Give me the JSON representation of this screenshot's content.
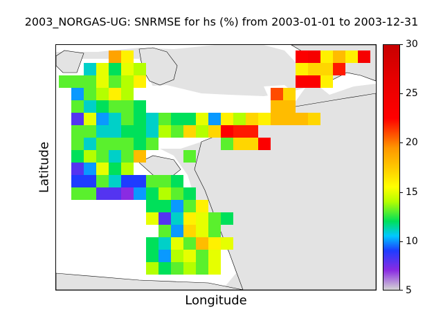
{
  "title": "2003_NORGAS-UG: SNRMSE for hs (%) from 2003-01-01 to 2003-12-31",
  "xlabel": "Longitude",
  "ylabel": "Latitude",
  "colorbar": {
    "min": 5,
    "max": 30,
    "ticks": [
      "5",
      "10",
      "15",
      "20",
      "25",
      "30"
    ]
  },
  "colors": {
    "land": "#e3e3e3",
    "sea": "#ffffff",
    "coast": "#000000"
  },
  "grid": {
    "rows": [
      {
        "start": 4,
        "values": [
          19,
          16
        ]
      },
      {
        "start": 2,
        "values": [
          11,
          15,
          12,
          15,
          14
        ]
      },
      {
        "start": 0,
        "values": [
          13,
          13,
          13,
          15,
          13,
          14,
          16
        ]
      },
      {
        "start": 1,
        "values": [
          10,
          13,
          14,
          16,
          14
        ]
      },
      {
        "start": 1,
        "values": [
          13,
          11,
          12,
          13,
          13,
          12
        ]
      },
      {
        "start": 1,
        "values": [
          8,
          15,
          10,
          11,
          13,
          12,
          11,
          13,
          12,
          12,
          13,
          12,
          15,
          13,
          11,
          18,
          18,
          19,
          14
        ]
      },
      {
        "start": 1,
        "values": [
          13,
          13,
          11,
          11,
          12,
          12,
          11,
          14,
          13,
          17,
          14,
          23,
          22
        ]
      },
      {
        "start": 1,
        "values": [
          13,
          11,
          13,
          13,
          13,
          12,
          13
        ]
      },
      {
        "start": 1,
        "values": [
          12,
          14,
          13,
          11,
          13,
          18
        ]
      },
      {
        "start": 1,
        "values": [
          8,
          10,
          15,
          12,
          14
        ]
      },
      {
        "start": 1,
        "values": [
          9,
          9,
          13,
          11,
          9,
          9,
          13,
          13,
          12
        ]
      },
      {
        "start": 1,
        "values": [
          13,
          13,
          8,
          8,
          7,
          10,
          12,
          14,
          16
        ]
      }
    ],
    "segments": [
      {
        "row": 5,
        "start": 11,
        "values": [
          15,
          10,
          16,
          14,
          17,
          16,
          18,
          18,
          18,
          17
        ]
      },
      {
        "row": 6,
        "start": 12,
        "values": [
          17,
          23,
          22,
          22
        ]
      },
      {
        "row": 7,
        "start": 13,
        "values": [
          13,
          17,
          17,
          23
        ]
      },
      {
        "row": 8,
        "start": 10,
        "values": [
          13
        ]
      },
      {
        "row": 11,
        "start": 9,
        "values": [
          13,
          12
        ]
      },
      {
        "row": 12,
        "start": 7,
        "values": [
          12,
          12,
          10,
          13,
          16
        ]
      },
      {
        "row": 13,
        "start": 7,
        "values": [
          15,
          8,
          11,
          16,
          15,
          13,
          12
        ]
      },
      {
        "row": 14,
        "start": 8,
        "values": [
          13,
          10,
          17,
          15,
          13
        ]
      },
      {
        "row": 15,
        "start": 7,
        "values": [
          12,
          11,
          15,
          13,
          18,
          16,
          15
        ]
      },
      {
        "row": 16,
        "start": 7,
        "values": [
          12,
          10,
          14,
          15,
          13,
          15
        ]
      },
      {
        "row": 17,
        "start": 7,
        "values": [
          14,
          12,
          13,
          14,
          13,
          15
        ]
      }
    ],
    "north_east": [
      {
        "row": 0,
        "start": 19,
        "values": [
          23,
          24,
          16,
          18,
          16,
          24
        ]
      },
      {
        "row": 1,
        "start": 19,
        "values": [
          16,
          17,
          17,
          22
        ]
      },
      {
        "row": 2,
        "start": 19,
        "values": [
          23,
          23,
          16
        ]
      },
      {
        "row": 3,
        "start": 17,
        "values": [
          21,
          17
        ]
      },
      {
        "row": 4,
        "start": 17,
        "values": [
          18,
          18
        ]
      }
    ]
  }
}
